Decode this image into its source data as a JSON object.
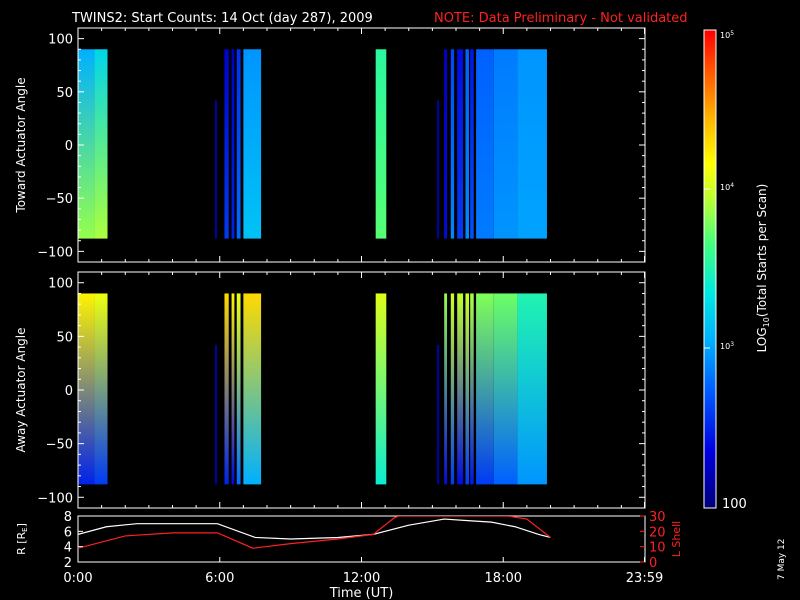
{
  "chart_data": {
    "type": "heatmap",
    "title": "TWINS2: Start Counts: 14 Oct (day 287), 2009",
    "note": "NOTE: Data Preliminary - Not validated",
    "stamp": "7 May 12",
    "xlabel": "Time (UT)",
    "xlim_hours": [
      0,
      24
    ],
    "x_ticks": [
      {
        "h": 0,
        "label": "0:00"
      },
      {
        "h": 6,
        "label": "6:00"
      },
      {
        "h": 12,
        "label": "12:00"
      },
      {
        "h": 18,
        "label": "18:00"
      },
      {
        "h": 23.98,
        "label": "23:59"
      }
    ],
    "colorbar": {
      "label": "LOG10(Total Starts per Scan)",
      "range": [
        100,
        100000
      ],
      "ticks": [
        "100",
        "10^3",
        "10^4",
        "10^5"
      ]
    },
    "panels": [
      {
        "name": "toward",
        "ylabel": "Toward Actuator Angle",
        "ylim": [
          -110,
          110
        ],
        "y_ticks": [
          100,
          50,
          0,
          -50,
          -100
        ],
        "data_extent": [
          -88,
          90
        ],
        "segments": [
          {
            "t0": 0.0,
            "t1": 0.7,
            "top": 3.05,
            "bottom": 3.85
          },
          {
            "t0": 0.7,
            "t1": 1.25,
            "top": 3.25,
            "bottom": 3.9
          },
          {
            "t0": 5.8,
            "t1": 5.88,
            "top": 2.2,
            "bottom": 2.2
          },
          {
            "t0": 6.2,
            "t1": 6.38,
            "top": 2.3,
            "bottom": 2.6
          },
          {
            "t0": 6.5,
            "t1": 6.62,
            "top": 2.25,
            "bottom": 2.5
          },
          {
            "t0": 6.72,
            "t1": 6.88,
            "top": 2.55,
            "bottom": 2.8
          },
          {
            "t0": 7.0,
            "t1": 7.75,
            "top": 2.95,
            "bottom": 3.15
          },
          {
            "t0": 12.6,
            "t1": 13.05,
            "top": 3.55,
            "bottom": 3.7
          },
          {
            "t0": 15.2,
            "t1": 15.28,
            "top": 2.2,
            "bottom": 2.2
          },
          {
            "t0": 15.5,
            "t1": 15.62,
            "top": 2.3,
            "bottom": 2.4
          },
          {
            "t0": 15.78,
            "t1": 15.92,
            "top": 2.65,
            "bottom": 2.9
          },
          {
            "t0": 16.05,
            "t1": 16.3,
            "top": 2.4,
            "bottom": 2.6
          },
          {
            "t0": 16.4,
            "t1": 16.55,
            "top": 2.75,
            "bottom": 2.9
          },
          {
            "t0": 16.6,
            "t1": 16.75,
            "top": 2.45,
            "bottom": 2.7
          },
          {
            "t0": 16.85,
            "t1": 17.6,
            "top": 2.75,
            "bottom": 2.85
          },
          {
            "t0": 17.6,
            "t1": 18.6,
            "top": 2.85,
            "bottom": 2.95
          },
          {
            "t0": 18.6,
            "t1": 19.85,
            "top": 2.95,
            "bottom": 3.0
          }
        ]
      },
      {
        "name": "away",
        "ylabel": "Away Actuator Angle",
        "ylim": [
          -110,
          110
        ],
        "y_ticks": [
          100,
          50,
          0,
          -50,
          -100
        ],
        "data_extent": [
          -88,
          90
        ],
        "segments": [
          {
            "t0": 0.0,
            "t1": 0.7,
            "top": 4.2,
            "bottom": 2.5
          },
          {
            "t0": 0.7,
            "t1": 1.25,
            "top": 4.1,
            "bottom": 2.6
          },
          {
            "t0": 5.8,
            "t1": 5.88,
            "top": 2.2,
            "bottom": 2.2
          },
          {
            "t0": 6.2,
            "t1": 6.38,
            "top": 4.3,
            "bottom": 2.5
          },
          {
            "t0": 6.5,
            "t1": 6.62,
            "top": 4.2,
            "bottom": 2.4
          },
          {
            "t0": 6.72,
            "t1": 6.88,
            "top": 4.1,
            "bottom": 2.8
          },
          {
            "t0": 7.0,
            "t1": 7.75,
            "top": 4.3,
            "bottom": 3.05
          },
          {
            "t0": 12.6,
            "t1": 13.05,
            "top": 4.05,
            "bottom": 3.4
          },
          {
            "t0": 15.2,
            "t1": 15.28,
            "top": 2.2,
            "bottom": 2.2
          },
          {
            "t0": 15.5,
            "t1": 15.62,
            "top": 3.85,
            "bottom": 2.4
          },
          {
            "t0": 15.78,
            "t1": 15.92,
            "top": 4.0,
            "bottom": 2.6
          },
          {
            "t0": 16.05,
            "t1": 16.3,
            "top": 3.95,
            "bottom": 2.4
          },
          {
            "t0": 16.4,
            "t1": 16.55,
            "top": 4.0,
            "bottom": 2.6
          },
          {
            "t0": 16.6,
            "t1": 16.75,
            "top": 3.9,
            "bottom": 2.45
          },
          {
            "t0": 16.85,
            "t1": 17.6,
            "top": 3.8,
            "bottom": 2.6
          },
          {
            "t0": 17.6,
            "t1": 18.6,
            "top": 3.75,
            "bottom": 2.75
          },
          {
            "t0": 18.6,
            "t1": 19.85,
            "top": 3.5,
            "bottom": 2.95
          }
        ]
      }
    ],
    "ephemeris": {
      "ylabel_left": "R [RE]",
      "ylabel_right": "L Shell",
      "left_ylim": [
        2,
        8
      ],
      "left_ticks": [
        2,
        4,
        6,
        8
      ],
      "right_ylim": [
        0,
        30
      ],
      "right_ticks": [
        0,
        10,
        20,
        30
      ],
      "R_series": {
        "name": "R",
        "color": "#ffffff",
        "x": [
          0,
          1.2,
          2.5,
          4.5,
          5.9,
          7.5,
          9,
          11,
          12.5,
          14,
          15.5,
          16.5,
          17.5,
          18.5,
          19.5,
          20
        ],
        "y": [
          5.6,
          6.6,
          7.0,
          7.0,
          7.0,
          5.2,
          5.0,
          5.2,
          5.6,
          6.8,
          7.6,
          7.4,
          7.2,
          6.6,
          5.6,
          5.2
        ]
      },
      "L_series": {
        "name": "L Shell",
        "color": "#ff2020",
        "x": [
          0,
          2,
          4,
          5.9,
          7.4,
          9,
          11,
          12.5,
          13.4,
          13.6,
          18.2,
          19,
          20
        ],
        "y": [
          9,
          17,
          19,
          19,
          9,
          12,
          15,
          18,
          29,
          30,
          30,
          28,
          16
        ]
      }
    }
  }
}
